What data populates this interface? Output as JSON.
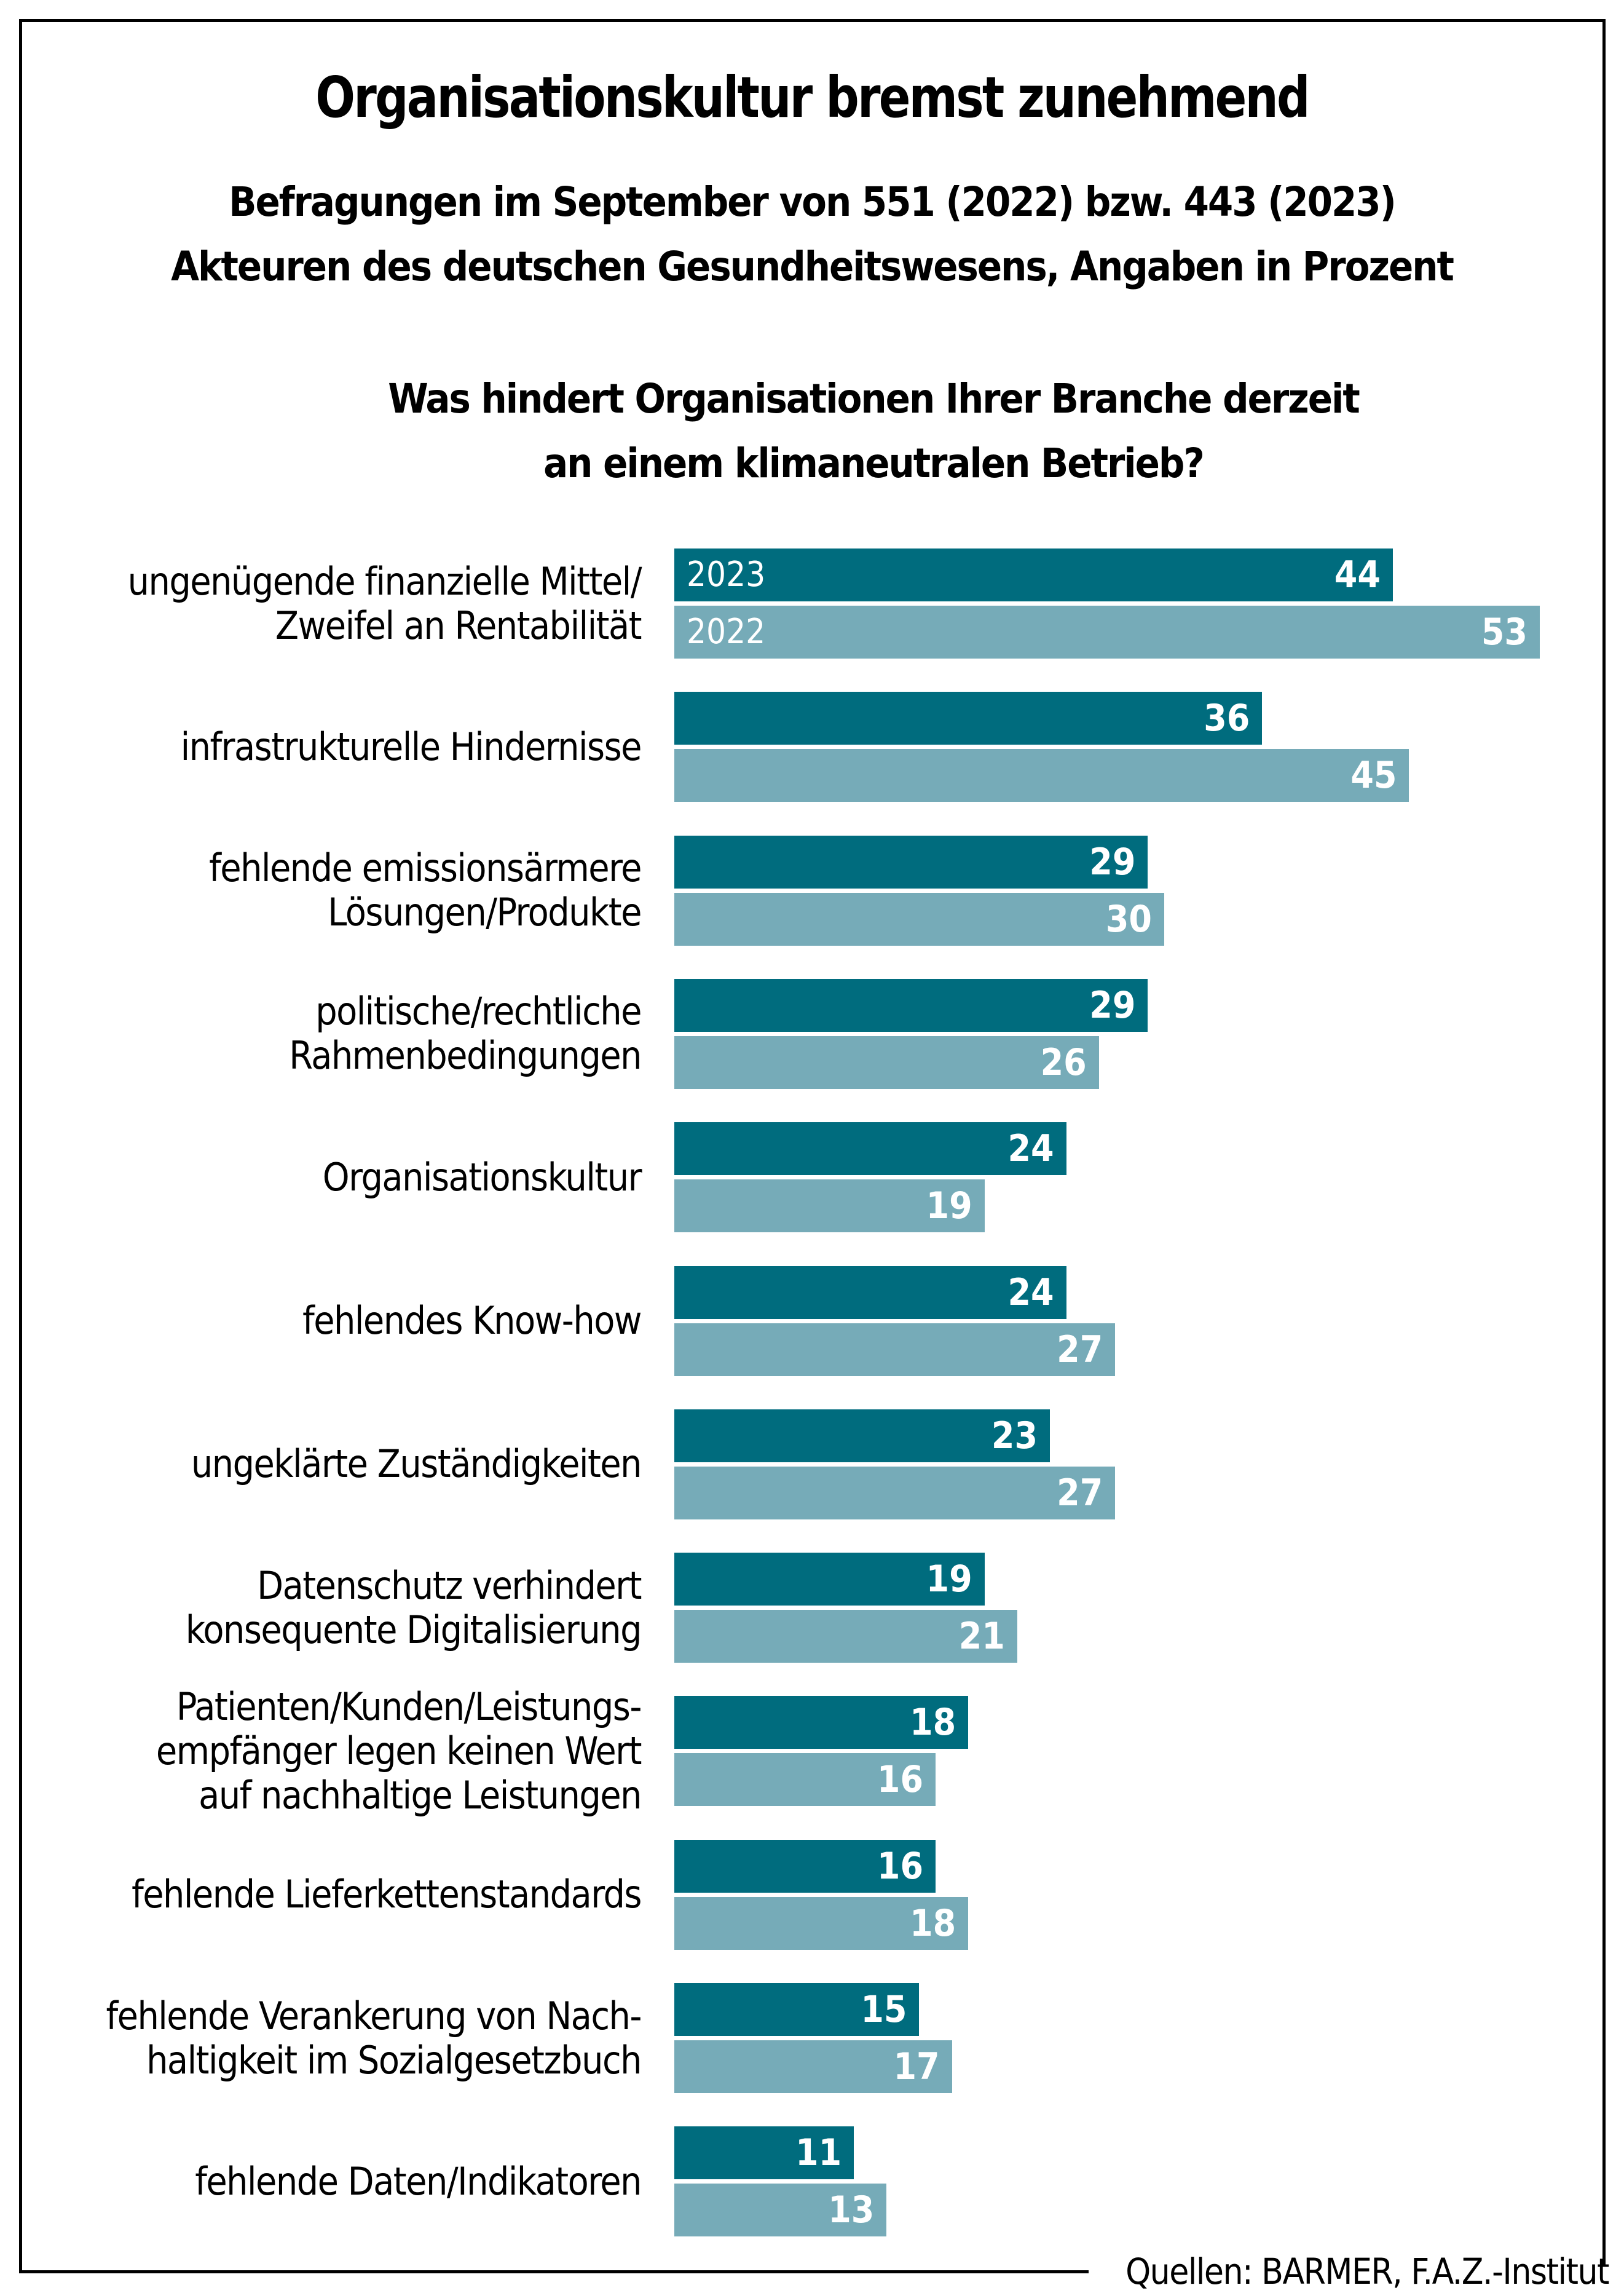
{
  "chart_data": {
    "type": "bar",
    "orientation": "horizontal",
    "title": "Organisationskultur bremst zunehmend",
    "subtitle": [
      "Befragungen im September von 551 (2022) bzw. 443 (2023)",
      "Akteuren des deutschen Gesundheitswesens, Angaben in Prozent"
    ],
    "question": [
      "Was hindert Organisationen Ihrer Branche derzeit",
      "an einem klimaneutralen Betrieb?"
    ],
    "xlabel": "",
    "ylabel": "",
    "xlim": [
      0,
      53
    ],
    "grid": false,
    "legend": "inline-first-group",
    "categories": [
      [
        "ungenügende finanzielle Mittel/",
        "Zweifel an Rentabilität"
      ],
      [
        "infrastrukturelle Hindernisse"
      ],
      [
        "fehlende emissionsärmere",
        "Lösungen/Produkte"
      ],
      [
        "politische/rechtliche",
        "Rahmenbedingungen"
      ],
      [
        "Organisationskultur"
      ],
      [
        "fehlendes Know-how"
      ],
      [
        "ungeklärte Zuständigkeiten"
      ],
      [
        "Datenschutz verhindert",
        "konsequente Digitalisierung"
      ],
      [
        "Patienten/Kunden/Leistungs-",
        "empfänger legen keinen Wert",
        "auf nachhaltige Leistungen"
      ],
      [
        "fehlende Lieferkettenstandards"
      ],
      [
        "fehlende Verankerung von Nach-",
        "haltigkeit im Sozialgesetzbuch"
      ],
      [
        "fehlende Daten/Indikatoren"
      ]
    ],
    "series": [
      {
        "name": "2023",
        "color": "#006c7e",
        "values": [
          44,
          36,
          29,
          29,
          24,
          24,
          23,
          19,
          18,
          16,
          15,
          11
        ]
      },
      {
        "name": "2022",
        "color": "#76abb8",
        "values": [
          53,
          45,
          30,
          26,
          19,
          27,
          27,
          21,
          16,
          18,
          17,
          13
        ]
      }
    ],
    "source": "Quellen: BARMER, F.A.Z.-Institut"
  }
}
